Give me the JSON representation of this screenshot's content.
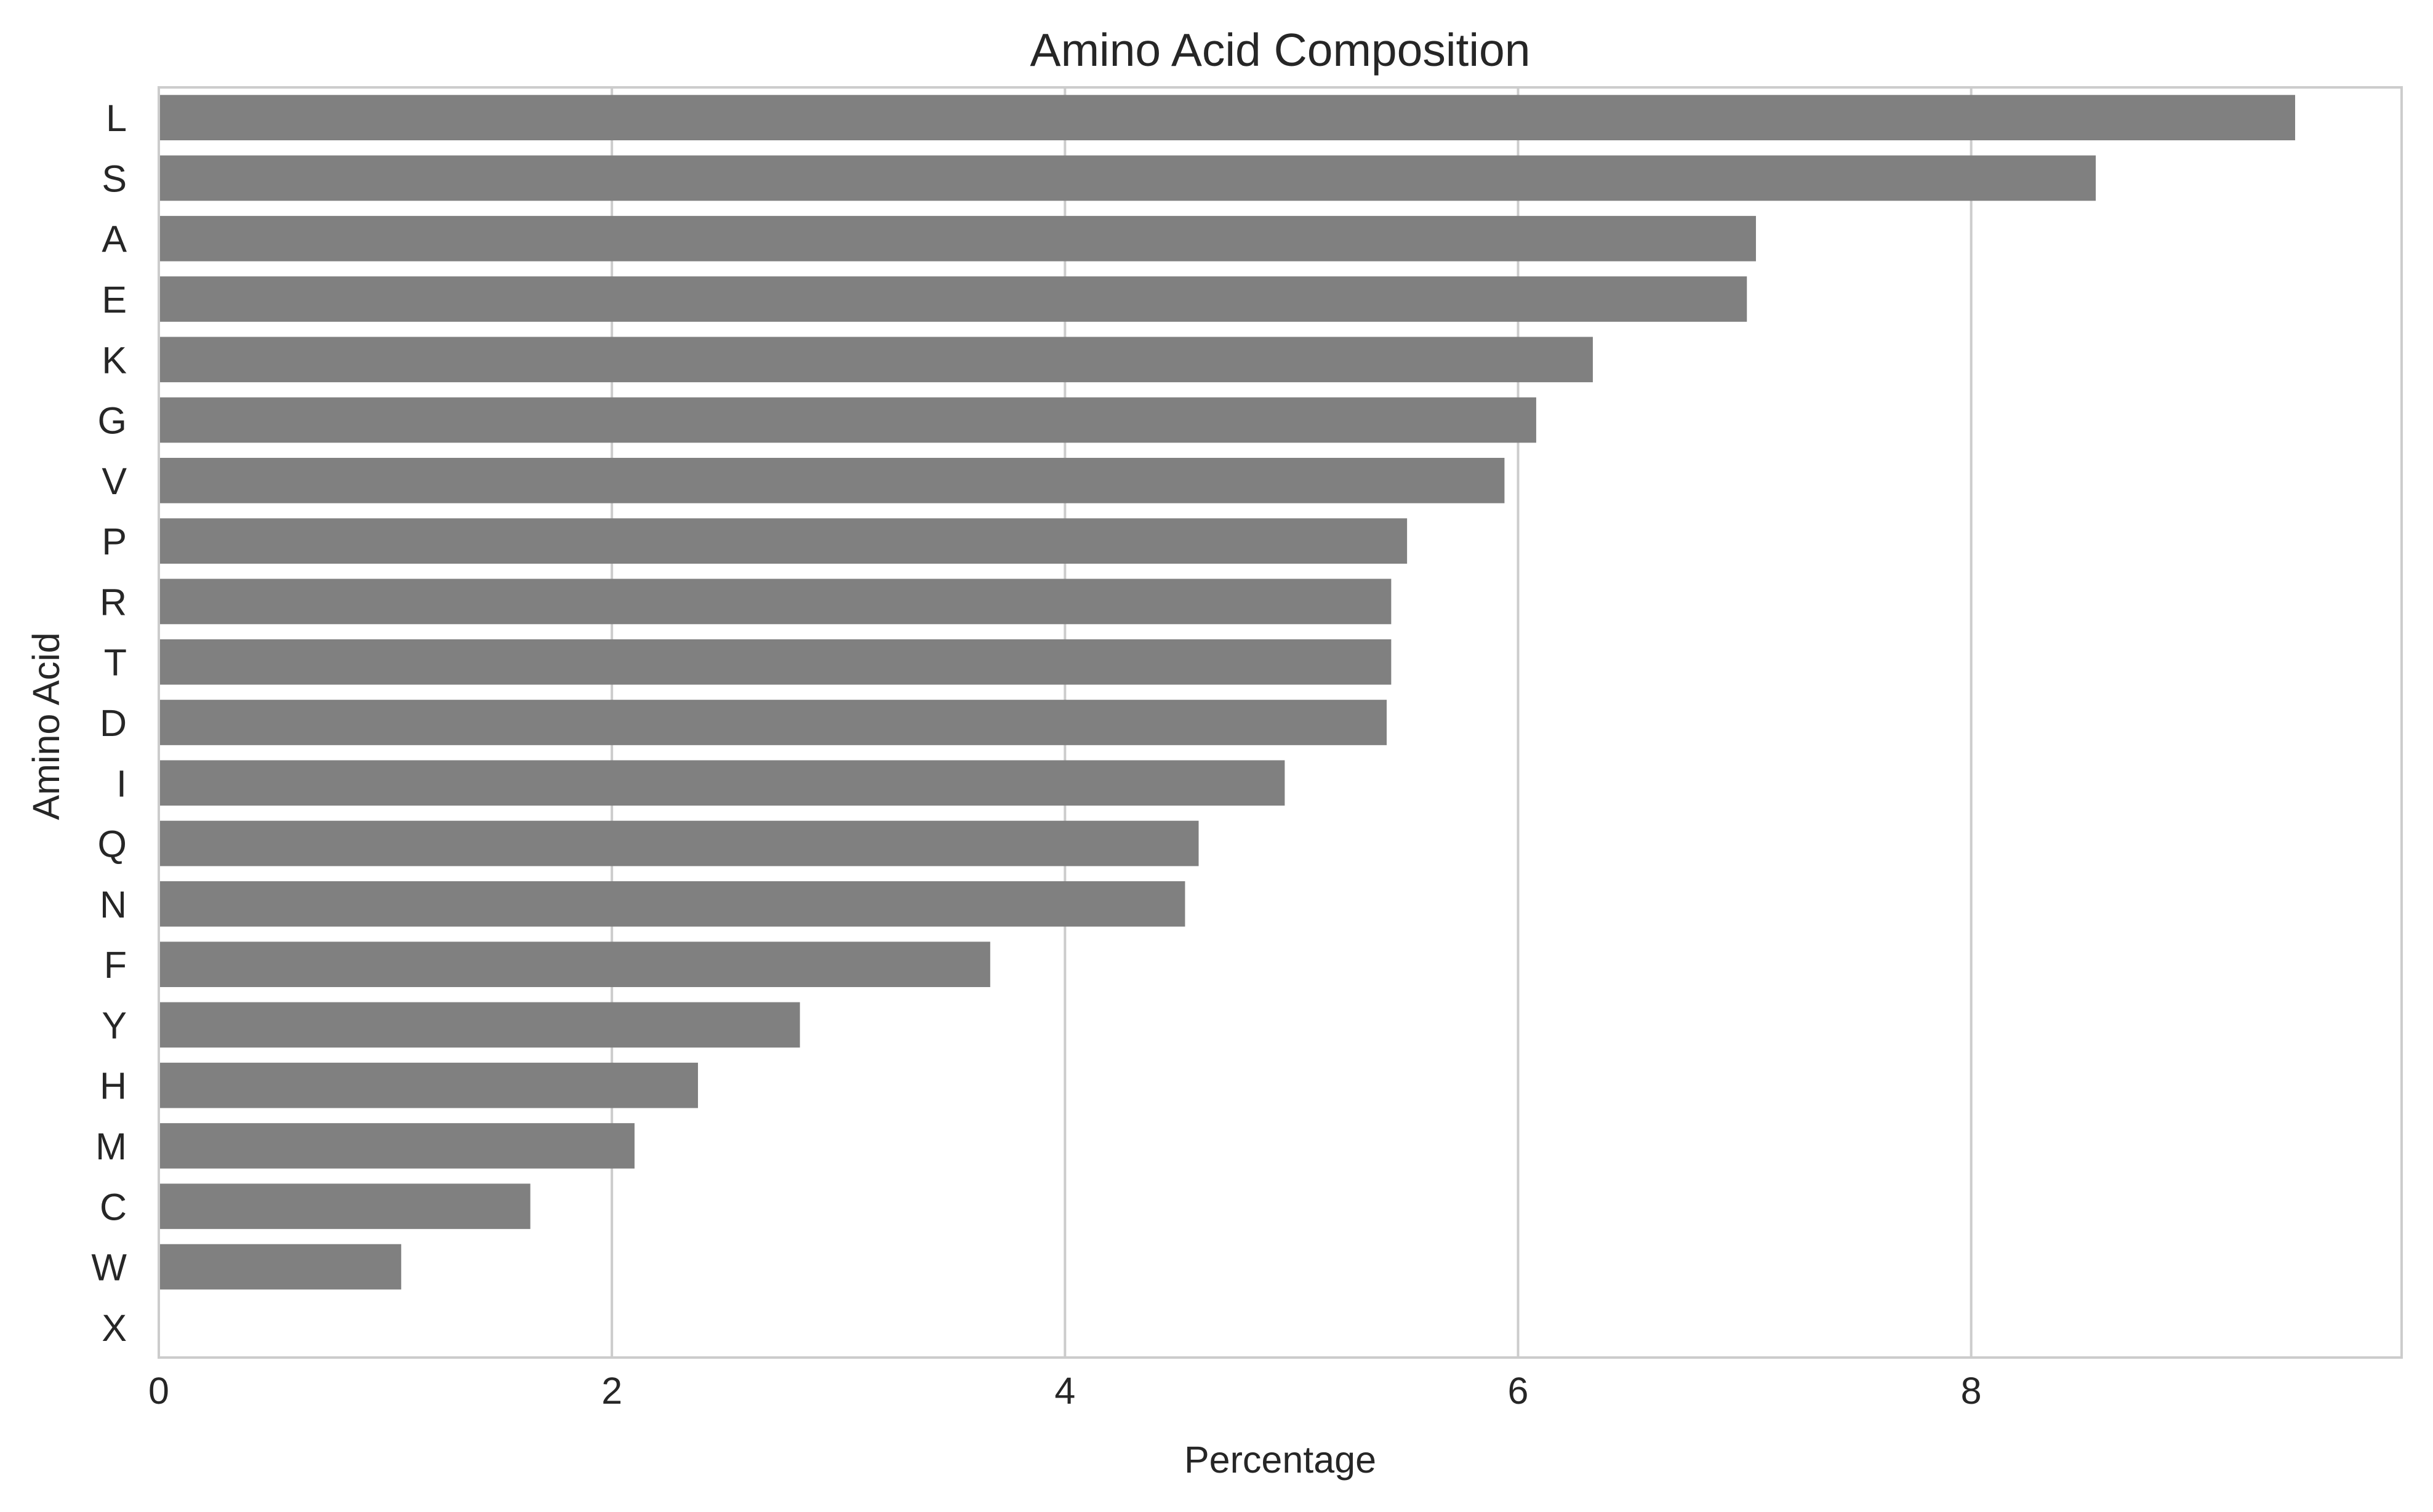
{
  "chart_data": {
    "type": "bar",
    "orientation": "horizontal",
    "title": "Amino Acid Composition",
    "xlabel": "Percentage",
    "ylabel": "Amino Acid",
    "categories": [
      "L",
      "S",
      "A",
      "E",
      "K",
      "G",
      "V",
      "P",
      "R",
      "T",
      "D",
      "I",
      "Q",
      "N",
      "F",
      "Y",
      "H",
      "M",
      "C",
      "W",
      "X"
    ],
    "values": [
      9.43,
      8.55,
      7.05,
      7.01,
      6.33,
      6.08,
      5.94,
      5.51,
      5.44,
      5.44,
      5.42,
      4.97,
      4.59,
      4.53,
      3.67,
      2.83,
      2.38,
      2.1,
      1.64,
      1.07,
      0
    ],
    "xlim": [
      0,
      9.9
    ],
    "xticks": [
      0,
      2,
      4,
      6,
      8
    ],
    "grid": true,
    "bar_color": "#808080"
  }
}
